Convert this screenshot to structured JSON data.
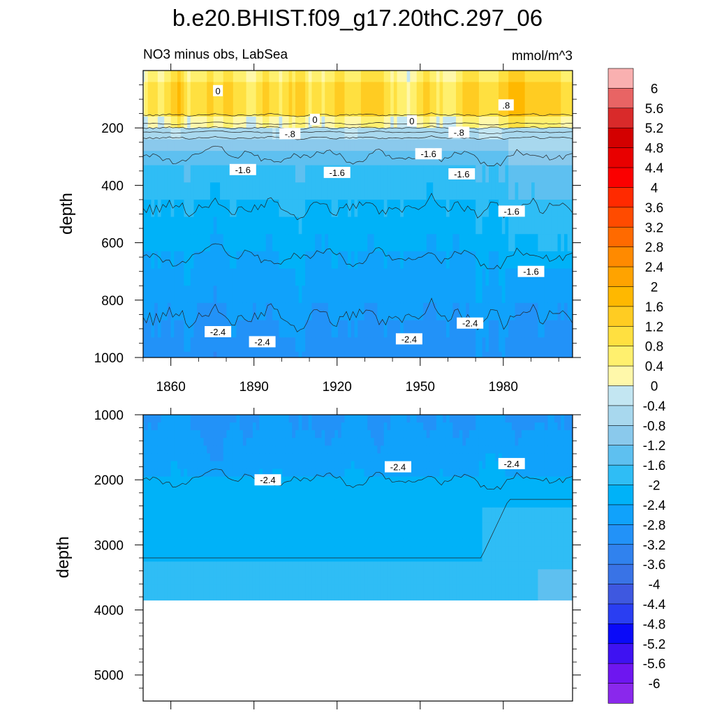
{
  "chart_data": [
    {
      "type": "heatmap",
      "panel": "upper",
      "title": "b.e20.BHIST.f09_g17.20thC.297_06",
      "subtitle_left": "NO3 minus obs, LabSea",
      "subtitle_right": "mmol/m^3",
      "xlabel": "",
      "ylabel": "depth",
      "xlim": [
        1850,
        2005
      ],
      "ylim": [
        0,
        1000
      ],
      "y_reversed": true,
      "x_ticks": [
        1860,
        1890,
        1920,
        1950,
        1980
      ],
      "x_tick_labels": [
        "1860",
        "1890",
        "1920",
        "1950",
        "1980"
      ],
      "y_ticks": [
        200,
        400,
        600,
        800,
        1000
      ],
      "y_tick_labels": [
        "200",
        "400",
        "600",
        "800",
        "1000"
      ],
      "depth_levels": [
        20,
        60,
        100,
        140,
        180,
        220,
        260,
        300,
        360,
        420,
        480,
        540,
        600,
        660,
        720,
        780,
        840,
        900,
        960,
        1000
      ],
      "mean_profile": [
        0.6,
        1.0,
        1.0,
        1.0,
        0.2,
        -0.5,
        -1.0,
        -1.4,
        -1.7,
        -1.85,
        -2.05,
        -2.15,
        -2.3,
        -2.45,
        -2.5,
        -2.55,
        -2.75,
        -2.85,
        -2.9,
        -2.95
      ],
      "contour_labels": [
        {
          "text": "0",
          "year": 1877,
          "depth": 70
        },
        {
          "text": "0",
          "year": 1912,
          "depth": 170
        },
        {
          "text": "0",
          "year": 1947,
          "depth": 175
        },
        {
          "text": ".8",
          "year": 1981,
          "depth": 120
        },
        {
          "text": "-.8",
          "year": 1903,
          "depth": 220
        },
        {
          "text": "-.8",
          "year": 1964,
          "depth": 215
        },
        {
          "text": "-1.6",
          "year": 1886,
          "depth": 345
        },
        {
          "text": "-1.6",
          "year": 1920,
          "depth": 355
        },
        {
          "text": "-1.6",
          "year": 1953,
          "depth": 290
        },
        {
          "text": "-1.6",
          "year": 1965,
          "depth": 360
        },
        {
          "text": "-1.6",
          "year": 1983,
          "depth": 490
        },
        {
          "text": "-1.6",
          "year": 1990,
          "depth": 700
        },
        {
          "text": "-2.4",
          "year": 1877,
          "depth": 910
        },
        {
          "text": "-2.4",
          "year": 1893,
          "depth": 945
        },
        {
          "text": "-2.4",
          "year": 1946,
          "depth": 935
        },
        {
          "text": "-2.4",
          "year": 1968,
          "depth": 880
        }
      ]
    },
    {
      "type": "heatmap",
      "panel": "lower",
      "xlabel": "",
      "ylabel": "depth",
      "xlim": [
        1850,
        2005
      ],
      "ylim": [
        1000,
        5400
      ],
      "y_reversed": true,
      "y_ticks": [
        1000,
        2000,
        3000,
        4000,
        5000
      ],
      "y_tick_labels": [
        "1000",
        "2000",
        "3000",
        "4000",
        "5000"
      ],
      "ocean_floor_depth": 3850,
      "contour_labels": [
        {
          "text": "-2.4",
          "year": 1895,
          "depth": 2000
        },
        {
          "text": "-2.4",
          "year": 1942,
          "depth": 1800
        },
        {
          "text": "-2.4",
          "year": 1983,
          "depth": 1750
        }
      ]
    }
  ],
  "colorbar": {
    "levels": [
      "6",
      "5.6",
      "5.2",
      "4.8",
      "4.4",
      "4",
      "3.6",
      "3.2",
      "2.8",
      "2.4",
      "2",
      "1.6",
      "1.2",
      "0.8",
      "0.4",
      "0",
      "-0.4",
      "-0.8",
      "-1.2",
      "-1.6",
      "-2",
      "-2.4",
      "-2.8",
      "-3.2",
      "-3.6",
      "-4",
      "-4.4",
      "-4.8",
      "-5.2",
      "-5.6",
      "-6"
    ],
    "colors": [
      "#f9b0b0",
      "#e86464",
      "#d92a2a",
      "#d30000",
      "#e80000",
      "#fb0000",
      "#ff2a00",
      "#ff4b00",
      "#ff6a00",
      "#ff8a00",
      "#ffa300",
      "#ffb800",
      "#ffcc22",
      "#ffe040",
      "#fff06e",
      "#fff8aa",
      "#c3e6f2",
      "#a8d8ee",
      "#8ac9ec",
      "#5ec0f0",
      "#2fbdf5",
      "#00b2f8",
      "#10a2fb",
      "#2292f8",
      "#3082ee",
      "#3973e6",
      "#3e58e0",
      "#2a3ef2",
      "#0a0af8",
      "#3e12f2",
      "#6e16f0",
      "#8a28ec"
    ]
  }
}
